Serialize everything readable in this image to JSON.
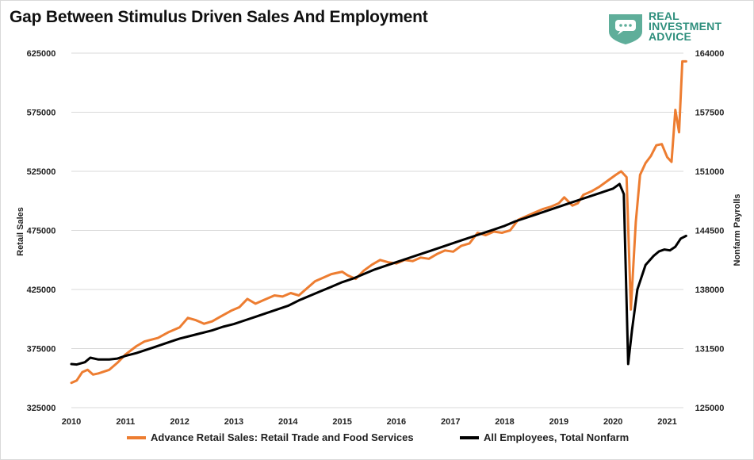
{
  "title": "Gap Between Stimulus Driven Sales And Employment",
  "logo": {
    "lines": [
      "REAL",
      "INVESTMENT",
      "ADVICE"
    ],
    "icon": "speech-bubble-shield-icon",
    "color": "#5fae9a"
  },
  "colors": {
    "retail": "#ed7d31",
    "payrolls": "#000000",
    "grid": "#d9d9d9"
  },
  "chart_data": {
    "type": "line",
    "title": "Gap Between Stimulus Driven Sales And Employment",
    "x_range": [
      2010.0,
      2021.3
    ],
    "x_ticks": [
      "2010",
      "2011",
      "2012",
      "2013",
      "2014",
      "2015",
      "2016",
      "2017",
      "2018",
      "2019",
      "2020",
      "2021"
    ],
    "left_axis": {
      "label": "Retail Sales",
      "min": 325000,
      "max": 625000,
      "ticks": [
        "325000",
        "375000",
        "425000",
        "475000",
        "525000",
        "575000",
        "625000"
      ]
    },
    "right_axis": {
      "label": "Nonfarm Payrolls",
      "min": 125000,
      "max": 164000,
      "ticks": [
        "125000",
        "131500",
        "138000",
        "144500",
        "151000",
        "157500",
        "164000"
      ]
    },
    "grid": "horizontal",
    "legend_position": "bottom",
    "series": [
      {
        "name": "Advance Retail Sales: Retail Trade and Food Services",
        "axis": "left",
        "color": "#ed7d31",
        "points": [
          [
            2010.0,
            346000
          ],
          [
            2010.1,
            348000
          ],
          [
            2010.2,
            355000
          ],
          [
            2010.3,
            357000
          ],
          [
            2010.4,
            353000
          ],
          [
            2010.5,
            354000
          ],
          [
            2010.7,
            357000
          ],
          [
            2010.85,
            363000
          ],
          [
            2011.0,
            370000
          ],
          [
            2011.2,
            377000
          ],
          [
            2011.35,
            381000
          ],
          [
            2011.6,
            384000
          ],
          [
            2011.8,
            389000
          ],
          [
            2012.0,
            393000
          ],
          [
            2012.15,
            401000
          ],
          [
            2012.3,
            399000
          ],
          [
            2012.45,
            396000
          ],
          [
            2012.6,
            398000
          ],
          [
            2012.75,
            402000
          ],
          [
            2012.95,
            407000
          ],
          [
            2013.1,
            410000
          ],
          [
            2013.25,
            417000
          ],
          [
            2013.4,
            413000
          ],
          [
            2013.55,
            416000
          ],
          [
            2013.75,
            420000
          ],
          [
            2013.9,
            419000
          ],
          [
            2014.05,
            422000
          ],
          [
            2014.2,
            420000
          ],
          [
            2014.35,
            426000
          ],
          [
            2014.5,
            432000
          ],
          [
            2014.65,
            435000
          ],
          [
            2014.8,
            438000
          ],
          [
            2015.0,
            440000
          ],
          [
            2015.1,
            437000
          ],
          [
            2015.25,
            434000
          ],
          [
            2015.4,
            441000
          ],
          [
            2015.55,
            446000
          ],
          [
            2015.7,
            450000
          ],
          [
            2015.85,
            448000
          ],
          [
            2016.0,
            447000
          ],
          [
            2016.15,
            450000
          ],
          [
            2016.3,
            449000
          ],
          [
            2016.45,
            452000
          ],
          [
            2016.6,
            451000
          ],
          [
            2016.75,
            455000
          ],
          [
            2016.9,
            458000
          ],
          [
            2017.05,
            457000
          ],
          [
            2017.2,
            462000
          ],
          [
            2017.35,
            464000
          ],
          [
            2017.5,
            473000
          ],
          [
            2017.65,
            471000
          ],
          [
            2017.8,
            474000
          ],
          [
            2017.95,
            473000
          ],
          [
            2018.1,
            475000
          ],
          [
            2018.25,
            484000
          ],
          [
            2018.4,
            487000
          ],
          [
            2018.55,
            490000
          ],
          [
            2018.7,
            493000
          ],
          [
            2018.85,
            495000
          ],
          [
            2019.0,
            498000
          ],
          [
            2019.1,
            503000
          ],
          [
            2019.25,
            496000
          ],
          [
            2019.35,
            498000
          ],
          [
            2019.45,
            505000
          ],
          [
            2019.6,
            508000
          ],
          [
            2019.75,
            512000
          ],
          [
            2019.9,
            517000
          ],
          [
            2020.05,
            522000
          ],
          [
            2020.15,
            525000
          ],
          [
            2020.25,
            520000
          ],
          [
            2020.33,
            408000
          ],
          [
            2020.42,
            482000
          ],
          [
            2020.5,
            522000
          ],
          [
            2020.6,
            532000
          ],
          [
            2020.7,
            538000
          ],
          [
            2020.8,
            547000
          ],
          [
            2020.9,
            548000
          ],
          [
            2021.0,
            537000
          ],
          [
            2021.08,
            533000
          ],
          [
            2021.15,
            577000
          ],
          [
            2021.22,
            558000
          ],
          [
            2021.28,
            618000
          ],
          [
            2021.35,
            618000
          ]
        ]
      },
      {
        "name": "All Employees, Total Nonfarm",
        "axis": "right",
        "color": "#000000",
        "points": [
          [
            2010.0,
            129800
          ],
          [
            2010.1,
            129750
          ],
          [
            2010.25,
            130000
          ],
          [
            2010.35,
            130500
          ],
          [
            2010.5,
            130300
          ],
          [
            2010.7,
            130300
          ],
          [
            2010.85,
            130400
          ],
          [
            2011.0,
            130700
          ],
          [
            2011.2,
            131000
          ],
          [
            2011.35,
            131300
          ],
          [
            2011.5,
            131600
          ],
          [
            2011.7,
            132000
          ],
          [
            2011.85,
            132300
          ],
          [
            2012.0,
            132600
          ],
          [
            2012.2,
            132900
          ],
          [
            2012.4,
            133200
          ],
          [
            2012.6,
            133500
          ],
          [
            2012.8,
            133900
          ],
          [
            2013.0,
            134200
          ],
          [
            2013.2,
            134600
          ],
          [
            2013.4,
            135000
          ],
          [
            2013.6,
            135400
          ],
          [
            2013.8,
            135800
          ],
          [
            2014.0,
            136200
          ],
          [
            2014.2,
            136800
          ],
          [
            2014.4,
            137300
          ],
          [
            2014.6,
            137800
          ],
          [
            2014.8,
            138300
          ],
          [
            2015.0,
            138800
          ],
          [
            2015.2,
            139200
          ],
          [
            2015.4,
            139700
          ],
          [
            2015.6,
            140200
          ],
          [
            2015.8,
            140600
          ],
          [
            2016.0,
            141000
          ],
          [
            2016.2,
            141400
          ],
          [
            2016.4,
            141800
          ],
          [
            2016.6,
            142200
          ],
          [
            2016.8,
            142600
          ],
          [
            2017.0,
            143000
          ],
          [
            2017.2,
            143400
          ],
          [
            2017.4,
            143800
          ],
          [
            2017.6,
            144200
          ],
          [
            2017.8,
            144600
          ],
          [
            2018.0,
            145000
          ],
          [
            2018.2,
            145500
          ],
          [
            2018.4,
            145900
          ],
          [
            2018.6,
            146300
          ],
          [
            2018.8,
            146700
          ],
          [
            2019.0,
            147100
          ],
          [
            2019.2,
            147500
          ],
          [
            2019.4,
            147900
          ],
          [
            2019.6,
            148300
          ],
          [
            2019.8,
            148700
          ],
          [
            2020.0,
            149100
          ],
          [
            2020.12,
            149600
          ],
          [
            2020.2,
            148500
          ],
          [
            2020.28,
            129800
          ],
          [
            2020.35,
            133500
          ],
          [
            2020.45,
            138000
          ],
          [
            2020.6,
            140700
          ],
          [
            2020.75,
            141700
          ],
          [
            2020.85,
            142200
          ],
          [
            2020.95,
            142400
          ],
          [
            2021.05,
            142300
          ],
          [
            2021.15,
            142700
          ],
          [
            2021.25,
            143600
          ],
          [
            2021.35,
            143900
          ]
        ]
      }
    ]
  }
}
